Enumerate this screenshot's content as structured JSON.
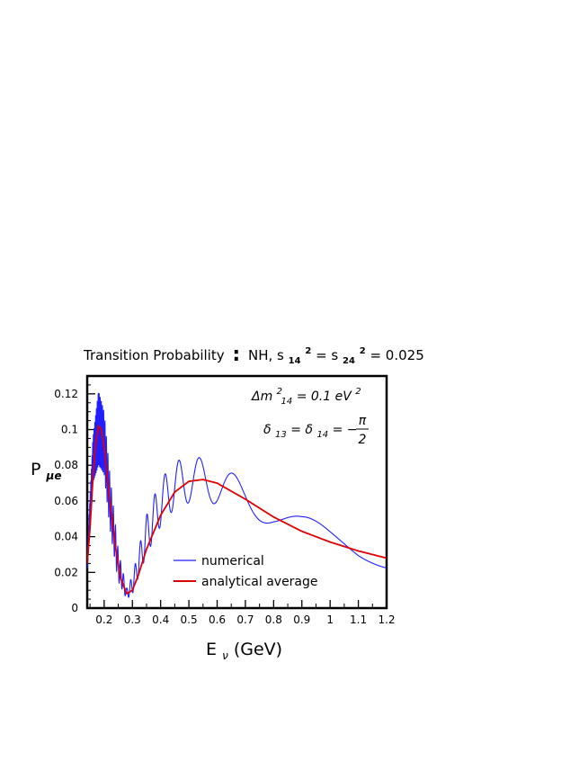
{
  "chart_data": {
    "type": "line",
    "title_parts": {
      "main": "Transition  Probability",
      "sep": ":",
      "rest": "NH, s",
      "s14_sub": "14",
      "sq1": "2",
      "eq1": " = s",
      "s24_sub": "24",
      "sq2": "2",
      "eq2": " = 0.025"
    },
    "xlabel_parts": {
      "main": "E",
      "sub": "ν",
      "rest": " (GeV)"
    },
    "ylabel_parts": {
      "main": "P",
      "sub": "μe"
    },
    "xlim": [
      0.14,
      1.2
    ],
    "ylim": [
      0,
      0.13
    ],
    "x_ticks": [
      {
        "v": 0.2,
        "label": "0.2"
      },
      {
        "v": 0.3,
        "label": "0.3"
      },
      {
        "v": 0.4,
        "label": "0.4"
      },
      {
        "v": 0.5,
        "label": "0.5"
      },
      {
        "v": 0.6,
        "label": "0.6"
      },
      {
        "v": 0.7,
        "label": "0.7"
      },
      {
        "v": 0.8,
        "label": "0.8"
      },
      {
        "v": 0.9,
        "label": "0.9"
      },
      {
        "v": 1.0,
        "label": "1"
      },
      {
        "v": 1.1,
        "label": "1.1"
      },
      {
        "v": 1.2,
        "label": "1.2"
      }
    ],
    "y_ticks": [
      {
        "v": 0,
        "label": "0"
      },
      {
        "v": 0.02,
        "label": "0.02"
      },
      {
        "v": 0.04,
        "label": "0.04"
      },
      {
        "v": 0.06,
        "label": "0.06"
      },
      {
        "v": 0.08,
        "label": "0.08"
      },
      {
        "v": 0.1,
        "label": "0.1"
      },
      {
        "v": 0.12,
        "label": "0.12"
      }
    ],
    "annotations": {
      "dm_parts": {
        "main": "Δm",
        "sup": "2",
        "sub": "14",
        "rest": " = 0.1 eV",
        "sup2": "2"
      },
      "delta_parts": {
        "d13": "δ",
        "s13": "13",
        "eq": " = ",
        "d14": "δ",
        "s14": "14",
        "rest": " = −",
        "num": "π",
        "den": "2"
      }
    },
    "series": [
      {
        "name": "numerical",
        "color": "#1f1fff",
        "style": "fast-oscillating",
        "envelope_x": [
          0.14,
          0.16,
          0.18,
          0.2,
          0.22,
          0.25,
          0.28,
          0.3,
          0.35,
          0.4,
          0.45,
          0.5,
          0.55,
          0.6,
          0.7,
          0.8,
          0.9,
          1.0,
          1.1,
          1.2
        ],
        "envelope_upper": [
          0.03,
          0.095,
          0.122,
          0.11,
          0.075,
          0.032,
          0.011,
          0.018,
          0.052,
          0.072,
          0.082,
          0.085,
          0.084,
          0.081,
          0.071,
          0.061,
          0.052,
          0.046,
          0.041,
          0.036
        ],
        "envelope_lower": [
          0.02,
          0.07,
          0.08,
          0.075,
          0.045,
          0.015,
          0.005,
          0.008,
          0.03,
          0.046,
          0.056,
          0.059,
          0.06,
          0.058,
          0.053,
          0.045,
          0.033,
          0.027,
          0.022,
          0.021
        ]
      },
      {
        "name": "analytical average",
        "color": "#e00000",
        "style": "smooth",
        "x": [
          0.14,
          0.15,
          0.16,
          0.17,
          0.18,
          0.19,
          0.2,
          0.21,
          0.22,
          0.24,
          0.26,
          0.28,
          0.3,
          0.32,
          0.35,
          0.4,
          0.45,
          0.5,
          0.55,
          0.6,
          0.7,
          0.8,
          0.9,
          1.0,
          1.1,
          1.2
        ],
        "y": [
          0.025,
          0.045,
          0.072,
          0.092,
          0.102,
          0.1,
          0.09,
          0.075,
          0.06,
          0.034,
          0.016,
          0.008,
          0.01,
          0.018,
          0.033,
          0.052,
          0.065,
          0.071,
          0.072,
          0.07,
          0.061,
          0.051,
          0.043,
          0.037,
          0.032,
          0.028
        ]
      }
    ],
    "legend": {
      "position": "bottom-center"
    },
    "grid": false
  }
}
